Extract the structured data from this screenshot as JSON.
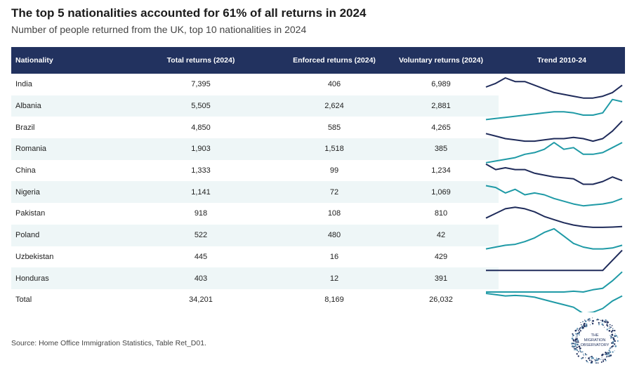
{
  "title": "The top 5 nationalities accounted for 61% of all returns in 2024",
  "subtitle": "Number of people returned from the UK, top 10 nationalities in 2024",
  "source": "Source: Home Office Immigration Statistics, Table Ret_D01.",
  "logo": {
    "line1": "THE",
    "line2": "MIGRATION",
    "line3": "OBSERVATORY"
  },
  "colors": {
    "header_bg": "#22325f",
    "navy_line": "#1f2b5a",
    "teal_line": "#1f9aa6",
    "row_shade": "#eef6f7"
  },
  "chart_data": {
    "type": "table",
    "columns": [
      "Nationality",
      "Total returns (2024)",
      "Enforced returns (2024)",
      "Voluntary returns (2024)",
      "Trend 2010-24"
    ],
    "rows": [
      {
        "nationality": "India",
        "total": "7,395",
        "enforced": "406",
        "voluntary": "6,989",
        "trend_color": "navy",
        "trend": [
          11,
          13,
          16,
          14,
          14,
          12,
          10,
          8,
          7,
          6,
          5,
          5,
          6,
          8,
          12
        ]
      },
      {
        "nationality": "Albania",
        "total": "5,505",
        "enforced": "2,624",
        "voluntary": "2,881",
        "trend_color": "teal",
        "trend": [
          3,
          3.5,
          4,
          4.5,
          5,
          5.5,
          6,
          6.5,
          6.5,
          6,
          5,
          5,
          6,
          12,
          11
        ]
      },
      {
        "nationality": "Brazil",
        "total": "4,850",
        "enforced": "585",
        "voluntary": "4,265",
        "trend_color": "navy",
        "trend": [
          8,
          7,
          6,
          5.5,
          5,
          5,
          5.5,
          6,
          6,
          6.5,
          6,
          5,
          6,
          9,
          13
        ]
      },
      {
        "nationality": "Romania",
        "total": "1,903",
        "enforced": "1,518",
        "voluntary": "385",
        "trend_color": "teal",
        "trend": [
          2,
          3,
          4,
          5,
          7,
          8,
          10,
          14,
          10,
          11,
          7,
          7,
          8,
          11,
          14
        ]
      },
      {
        "nationality": "China",
        "total": "1,333",
        "enforced": "99",
        "voluntary": "1,234",
        "trend_color": "navy",
        "trend": [
          14,
          11,
          12,
          11,
          11,
          9,
          8,
          7,
          6.5,
          6,
          3,
          3,
          4.5,
          7,
          5
        ]
      },
      {
        "nationality": "Nigeria",
        "total": "1,141",
        "enforced": "72",
        "voluntary": "1,069",
        "trend_color": "teal",
        "trend": [
          13,
          12,
          9,
          11,
          8,
          9,
          8,
          6,
          4.5,
          3,
          2,
          2.5,
          3,
          4,
          6
        ]
      },
      {
        "nationality": "Pakistan",
        "total": "918",
        "enforced": "108",
        "voluntary": "810",
        "trend_color": "navy",
        "trend": [
          7,
          10,
          13,
          14,
          13,
          11,
          8,
          6,
          4,
          2.5,
          1.5,
          1,
          1,
          1.2,
          1.5
        ]
      },
      {
        "nationality": "Poland",
        "total": "522",
        "enforced": "480",
        "voluntary": "42",
        "trend_color": "teal",
        "trend": [
          3,
          4,
          5,
          5.5,
          7,
          9,
          12,
          14,
          10,
          6,
          4,
          3,
          3,
          3.5,
          5
        ]
      },
      {
        "nationality": "Uzbekistan",
        "total": "445",
        "enforced": "16",
        "voluntary": "429",
        "trend_color": "navy",
        "trend": [
          1,
          1,
          1,
          1,
          1,
          1,
          1,
          1,
          1,
          1,
          1,
          1,
          1,
          3,
          5
        ]
      },
      {
        "nationality": "Honduras",
        "total": "403",
        "enforced": "12",
        "voluntary": "391",
        "trend_color": "teal",
        "trend": [
          0.3,
          0.3,
          0.3,
          0.3,
          0.3,
          0.3,
          0.3,
          0.3,
          0.3,
          0.4,
          0.3,
          0.6,
          0.8,
          1.8,
          3
        ]
      },
      {
        "nationality": "Total",
        "total": "34,201",
        "enforced": "8,169",
        "voluntary": "26,032",
        "trend_color": "teal",
        "trend": [
          10,
          9.5,
          9,
          9.2,
          9,
          8.5,
          7.5,
          6.5,
          5.5,
          4.5,
          2,
          2.5,
          4,
          7,
          9
        ]
      }
    ]
  }
}
